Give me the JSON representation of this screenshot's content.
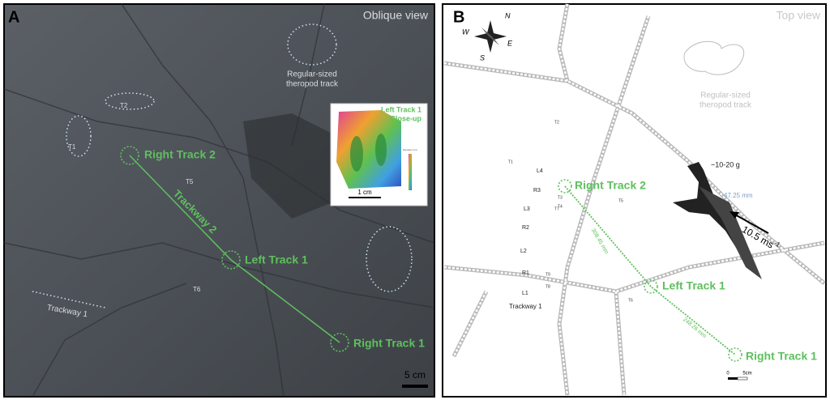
{
  "panel_a": {
    "label": "A",
    "view": "Oblique view",
    "regular_track": [
      "Regular-sized",
      "theropod track"
    ],
    "tracks": {
      "t1": "T1",
      "t2": "T2",
      "t5": "T5",
      "t6": "T6"
    },
    "right_track_2": "Right Track 2",
    "trackway_2": "Trackway 2",
    "left_track_1": "Left Track 1",
    "trackway_1": "Trackway 1",
    "right_track_1": "Right Track 1",
    "scale": "5 cm",
    "inset": {
      "title": [
        "Left Track 1",
        "Close-up"
      ],
      "scale": "1 cm",
      "legend_title": "Elevation (m)"
    }
  },
  "panel_b": {
    "label": "B",
    "view": "Top view",
    "compass": {
      "n": "N",
      "e": "E",
      "s": "S",
      "w": "W"
    },
    "regular_track": [
      "Regular-sized",
      "theropod track"
    ],
    "marks": {
      "t2": "T2",
      "t1": "T1",
      "l4": "L4",
      "t3": "T3",
      "r3": "R3",
      "t4": "T4",
      "t5": "T5",
      "l3": "L3",
      "t7": "T7",
      "r2": "R2",
      "l2": "L2",
      "r1": "R1",
      "t9": "T9",
      "l1": "L1",
      "t8": "T8",
      "t6": "T6"
    },
    "trackway_1": "Trackway 1",
    "right_track_2": "Right Track 2",
    "distance_1": "308.45 mm",
    "left_track_1": "Left Track 1",
    "distance_2": "248.26 mm",
    "right_track_1": "Right Track 1",
    "mass": "~10-20 g",
    "length": "47.25 mm",
    "speed": "10.5 ms",
    "speed_exp": "-1",
    "scale": {
      "zero": "0",
      "five": "5cm"
    }
  }
}
